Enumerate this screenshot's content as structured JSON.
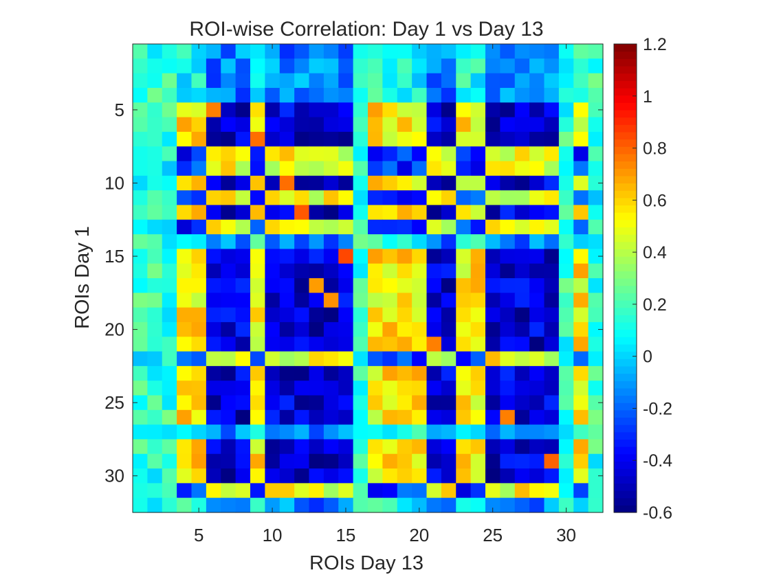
{
  "chart_data": {
    "type": "heatmap",
    "title": "ROI-wise Correlation: Day 1 vs Day 13",
    "xlabel": "ROIs Day 13",
    "ylabel": "ROIs Day 1",
    "n_cols": 32,
    "n_rows": 32,
    "x_ticks": [
      5,
      10,
      15,
      20,
      25,
      30
    ],
    "y_ticks": [
      5,
      10,
      15,
      20,
      25,
      30
    ],
    "colorbar": {
      "colormap": "jet",
      "clim": [
        -0.6,
        1.2
      ],
      "ticks": [
        -0.6,
        -0.4,
        -0.2,
        0,
        0.2,
        0.4,
        0.6,
        0.8,
        1,
        1.2
      ],
      "tick_labels": [
        "-0.6",
        "-0.4",
        "-0.2",
        "0",
        "0.2",
        "0.4",
        "0.6",
        "0.8",
        "1",
        "1.2"
      ]
    },
    "row_groups": {
      "A": [
        5,
        6,
        7,
        10,
        12,
        15,
        16,
        17,
        18,
        19,
        20,
        21,
        23,
        24,
        25,
        26,
        28,
        29,
        30
      ],
      "B": [
        8,
        9,
        11,
        13,
        22,
        31
      ],
      "C": [
        1,
        2,
        3,
        4,
        14,
        27,
        32
      ]
    },
    "col_groups": {
      "A": [
        6,
        7,
        8,
        10,
        11,
        12,
        13,
        14,
        15,
        21,
        22,
        25,
        26,
        27,
        28,
        29
      ],
      "B": [
        4,
        5,
        9,
        17,
        18,
        19,
        20,
        23,
        24,
        31
      ],
      "C": [
        1,
        2,
        3,
        16,
        30,
        32
      ]
    },
    "block_values": {
      "A": {
        "A": -0.45,
        "B": 0.55,
        "C": 0.15
      },
      "B": {
        "A": 0.5,
        "B": -0.3,
        "C": 0.1
      },
      "C": {
        "A": -0.15,
        "B": 0.1,
        "C": 0.15
      }
    },
    "cell_overrides": [
      {
        "row": 15,
        "col": 15,
        "value": 0.85
      },
      {
        "row": 12,
        "col": 12,
        "value": 0.82
      },
      {
        "row": 10,
        "col": 11,
        "value": 0.78
      },
      {
        "row": 7,
        "col": 9,
        "value": 0.78
      },
      {
        "row": 29,
        "col": 29,
        "value": 0.8
      },
      {
        "row": 26,
        "col": 26,
        "value": 0.75
      },
      {
        "row": 21,
        "col": 21,
        "value": 0.75
      },
      {
        "row": 18,
        "col": 14,
        "value": 0.72
      },
      {
        "row": 17,
        "col": 13,
        "value": 0.7
      },
      {
        "row": 5,
        "col": 6,
        "value": 0.75
      }
    ]
  }
}
